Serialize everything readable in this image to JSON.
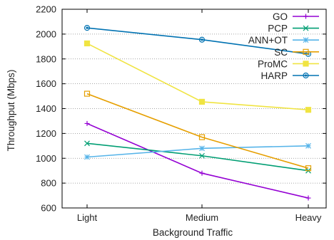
{
  "chart_data": {
    "type": "line",
    "title": "",
    "xlabel": "Background Traffic",
    "ylabel": "Throughput (Mbps)",
    "categories": [
      "Light",
      "Medium",
      "Heavy"
    ],
    "ylim": [
      600,
      2200
    ],
    "yticks": [
      600,
      800,
      1000,
      1200,
      1400,
      1600,
      1800,
      2000,
      2200
    ],
    "grid": "horizontal dotted",
    "legend_position": "top-right",
    "series": [
      {
        "name": "GO",
        "values": [
          1280,
          880,
          680
        ],
        "color": "#9400d3",
        "marker": "plus"
      },
      {
        "name": "PCP",
        "values": [
          1120,
          1020,
          900
        ],
        "color": "#009e73",
        "marker": "x"
      },
      {
        "name": "ANN+OT",
        "values": [
          1010,
          1080,
          1100
        ],
        "color": "#56b4e9",
        "marker": "star"
      },
      {
        "name": "SC",
        "values": [
          1520,
          1170,
          920
        ],
        "color": "#e69f00",
        "marker": "square"
      },
      {
        "name": "ProMC",
        "values": [
          1925,
          1455,
          1390
        ],
        "color": "#f0e442",
        "marker": "square-filled"
      },
      {
        "name": "HARP",
        "values": [
          2050,
          1955,
          1840
        ],
        "color": "#0072b2",
        "marker": "circle"
      }
    ]
  }
}
